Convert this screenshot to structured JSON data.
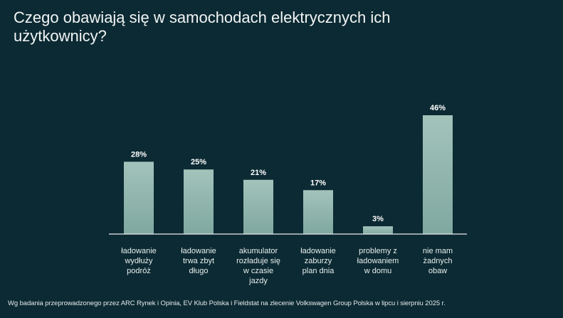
{
  "chart_data": {
    "type": "bar",
    "title": "Czego obawiają się w samochodach elektrycznych ich użytkownicy?",
    "categories": [
      "ładowanie wydłuży podróż",
      "ładowanie trwa zbyt długo",
      "akumulator rozładuje się w czasie jazdy",
      "ładowanie zaburzy plan dnia",
      "problemy z ładowaniem w domu",
      "nie mam żadnych obaw"
    ],
    "category_lines": [
      [
        "ładowanie",
        "wydłuży",
        "podróż"
      ],
      [
        "ładowanie",
        "trwa zbyt",
        "długo"
      ],
      [
        "akumulator",
        "rozładuje się",
        "w czasie",
        "jazdy"
      ],
      [
        "ładowanie",
        "zaburzy",
        "plan dnia"
      ],
      [
        "problemy z",
        "ładowaniem",
        "w domu"
      ],
      [
        "nie mam",
        "żadnych",
        "obaw"
      ]
    ],
    "values": [
      28,
      25,
      21,
      17,
      3,
      46
    ],
    "data_labels": [
      "28%",
      "25%",
      "21%",
      "17%",
      "3%",
      "46%"
    ],
    "unit": "%",
    "xlabel": "",
    "ylabel": "",
    "grid": false,
    "legend": "none",
    "colors": {
      "background": "#0c2a33",
      "bar_top": "#a3c3bb",
      "bar_bottom": "#7fa8a0",
      "axis": "#e8eeee",
      "text": "#ffffff"
    }
  },
  "footnote": "Wg badania przeprowadzonego przez ARC Rynek i Opinia, EV Klub Polska i Fieldstat na zlecenie Volkswagen Group Polska w lipcu i sierpniu 2025 r."
}
